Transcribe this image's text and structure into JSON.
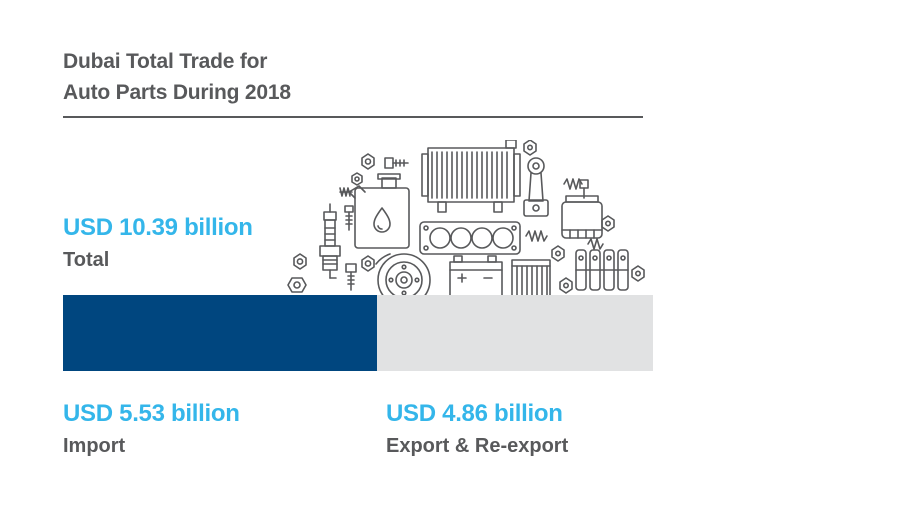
{
  "title": "Dubai Total Trade for\nAuto Parts During 2018",
  "total": {
    "value_text": "USD 10.39 billion",
    "label": "Total"
  },
  "chart_data": {
    "type": "bar",
    "orientation": "horizontal-stacked",
    "title": "Dubai Total Trade for Auto Parts During 2018",
    "unit": "USD billion",
    "total": 10.39,
    "series": [
      {
        "name": "Import",
        "value": 5.53,
        "color": "#00467f"
      },
      {
        "name": "Export & Re-export",
        "value": 4.86,
        "color": "#e1e2e3"
      }
    ]
  },
  "segments": {
    "import": {
      "value_text": "USD 5.53 billion",
      "label": "Import"
    },
    "export": {
      "value_text": "USD 4.86 billion",
      "label": "Export & Re-export"
    }
  },
  "colors": {
    "accent": "#34b6ea",
    "text": "#58595b",
    "import": "#00467f",
    "export": "#e1e2e3",
    "line_art": "#58595b"
  },
  "illustration": {
    "icons": [
      "spark-plug-icon",
      "oil-canister-icon",
      "radiator-icon",
      "head-gasket-icon",
      "brake-disc-icon",
      "battery-icon",
      "air-filter-icon",
      "oil-filter-icon",
      "connecting-rod-icon",
      "camshaft-icon",
      "bolt-icon",
      "nut-icon",
      "spring-icon"
    ]
  }
}
